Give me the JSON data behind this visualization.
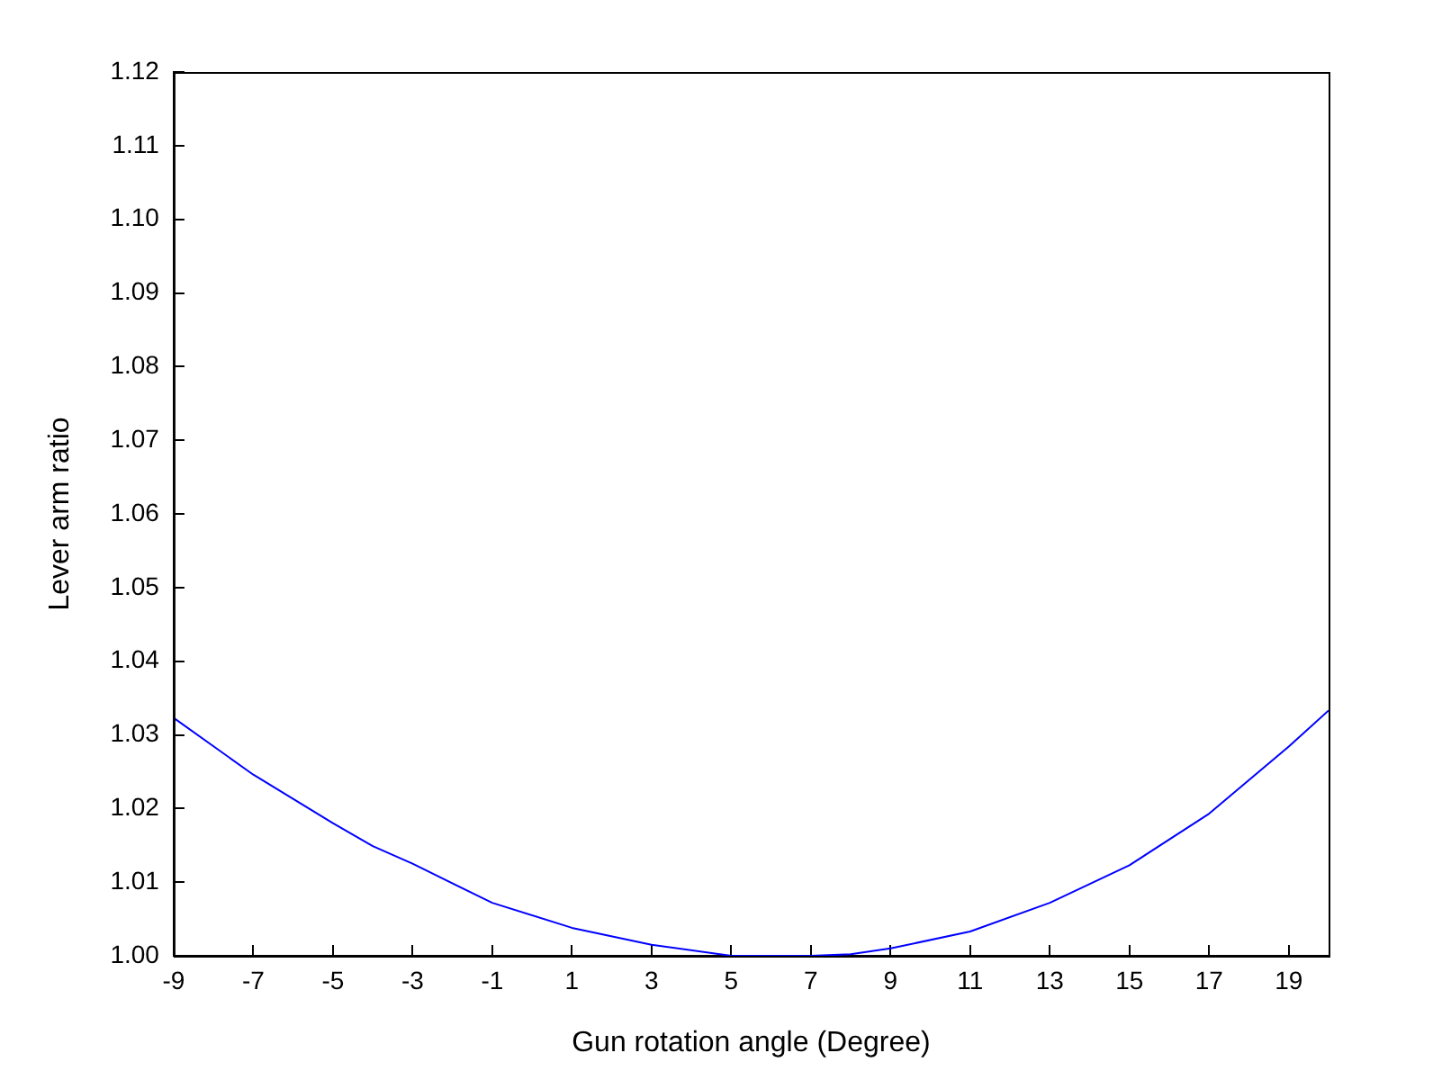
{
  "chart_data": {
    "type": "line",
    "xlabel": "Gun rotation angle (Degree)",
    "ylabel": "Lever arm ratio",
    "x": [
      -9,
      -7,
      -5,
      -4,
      -3,
      -1,
      1,
      3,
      5,
      6,
      7,
      8,
      9,
      11,
      13,
      15,
      17,
      19,
      20
    ],
    "series": [
      {
        "color": "#0000ff",
        "values": [
          1.0323,
          1.0246,
          1.018,
          1.0149,
          1.0125,
          1.0072,
          1.0038,
          1.0015,
          1.0,
          1.0,
          1.0,
          1.0002,
          1.001,
          1.0033,
          1.0072,
          1.0123,
          1.0193,
          1.0284,
          1.0333
        ]
      }
    ],
    "xlim": [
      -9,
      20
    ],
    "xticks": [
      -9,
      -7,
      -5,
      -3,
      -1,
      1,
      3,
      5,
      7,
      9,
      11,
      13,
      15,
      17,
      19
    ],
    "ylim": [
      1.0,
      1.12
    ],
    "yticks": [
      {
        "value": 1.0,
        "label": "1.00"
      },
      {
        "value": 1.01,
        "label": "1.01"
      },
      {
        "value": 1.02,
        "label": "1.02"
      },
      {
        "value": 1.03,
        "label": "1.03"
      },
      {
        "value": 1.04,
        "label": "1.04"
      },
      {
        "value": 1.05,
        "label": "1.05"
      },
      {
        "value": 1.06,
        "label": "1.06"
      },
      {
        "value": 1.07,
        "label": "1.07"
      },
      {
        "value": 1.08,
        "label": "1.08"
      },
      {
        "value": 1.09,
        "label": "1.09"
      },
      {
        "value": 1.1,
        "label": "1.10"
      },
      {
        "value": 1.11,
        "label": "1.11"
      },
      {
        "value": 1.12,
        "label": "1.12"
      }
    ],
    "grid": false,
    "legend": false,
    "marker": "none",
    "line_style": "solid"
  }
}
